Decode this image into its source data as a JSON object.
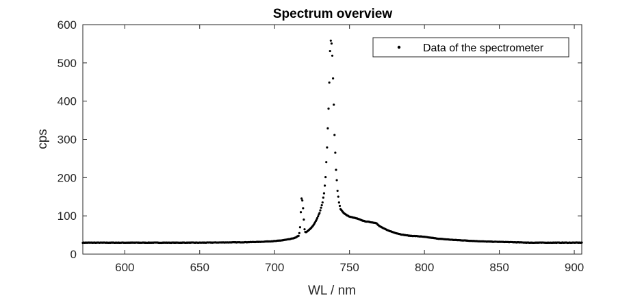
{
  "chart_data": {
    "type": "scatter",
    "title": "Spectrum overview",
    "xlabel": "WL / nm",
    "ylabel": "cps",
    "xlim": [
      572,
      905
    ],
    "ylim": [
      0,
      600
    ],
    "xticks": [
      600,
      650,
      700,
      750,
      800,
      850,
      900
    ],
    "yticks": [
      0,
      100,
      200,
      300,
      400,
      500,
      600
    ],
    "grid": false,
    "legend_position": "top-right",
    "series": [
      {
        "name": "Data of the spectrometer",
        "color": "#000000",
        "marker": "dot",
        "x_start": 572,
        "x_end": 905,
        "x_step": 0.5,
        "baseline": 30,
        "profile_points": [
          [
            572,
            30
          ],
          [
            600,
            30
          ],
          [
            650,
            30
          ],
          [
            680,
            31
          ],
          [
            690,
            32
          ],
          [
            700,
            34
          ],
          [
            705,
            36
          ],
          [
            710,
            39
          ],
          [
            714,
            43
          ],
          [
            716,
            48
          ],
          [
            716.5,
            55
          ],
          [
            717,
            70
          ],
          [
            717.5,
            110
          ],
          [
            718,
            145
          ],
          [
            718.5,
            140
          ],
          [
            719,
            120
          ],
          [
            719.5,
            90
          ],
          [
            720,
            65
          ],
          [
            720.5,
            58
          ],
          [
            721,
            57
          ],
          [
            722,
            60
          ],
          [
            724,
            67
          ],
          [
            726,
            76
          ],
          [
            728,
            90
          ],
          [
            730,
            108
          ],
          [
            732,
            135
          ],
          [
            733,
            160
          ],
          [
            734,
            200
          ],
          [
            735,
            280
          ],
          [
            736,
            380
          ],
          [
            736.5,
            450
          ],
          [
            737,
            530
          ],
          [
            737.5,
            558
          ],
          [
            738,
            550
          ],
          [
            738.5,
            520
          ],
          [
            739,
            460
          ],
          [
            739.5,
            390
          ],
          [
            740,
            310
          ],
          [
            741,
            220
          ],
          [
            742,
            165
          ],
          [
            743,
            135
          ],
          [
            744,
            118
          ],
          [
            746,
            108
          ],
          [
            748,
            102
          ],
          [
            750,
            98
          ],
          [
            755,
            93
          ],
          [
            760,
            86
          ],
          [
            765,
            83
          ],
          [
            768,
            81
          ],
          [
            770,
            73
          ],
          [
            775,
            63
          ],
          [
            780,
            56
          ],
          [
            785,
            51
          ],
          [
            790,
            48
          ],
          [
            795,
            47
          ],
          [
            800,
            45
          ],
          [
            810,
            40
          ],
          [
            820,
            37
          ],
          [
            830,
            35
          ],
          [
            840,
            33
          ],
          [
            850,
            32
          ],
          [
            860,
            31
          ],
          [
            870,
            30
          ],
          [
            905,
            30
          ]
        ]
      }
    ]
  }
}
